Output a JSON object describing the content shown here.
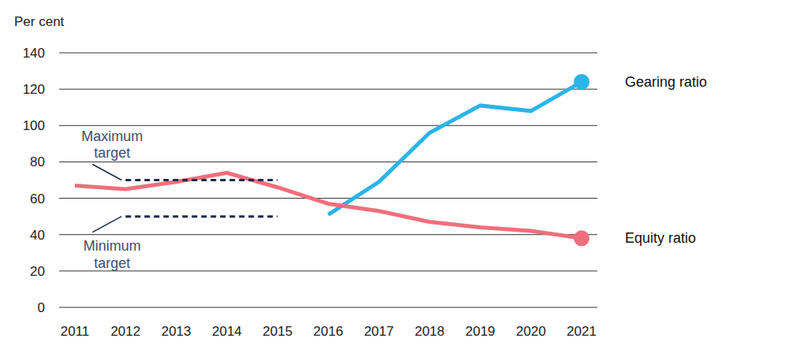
{
  "chart_data": {
    "type": "line",
    "y_label": "Per cent",
    "categories": [
      "2011",
      "2012",
      "2013",
      "2014",
      "2015",
      "2016",
      "2017",
      "2018",
      "2019",
      "2020",
      "2021"
    ],
    "series": [
      {
        "name": "Gearing ratio",
        "color": "#2bb4e8",
        "marker": "end",
        "line_style": "solid",
        "values": [
          null,
          null,
          null,
          null,
          null,
          51,
          69,
          96,
          111,
          108,
          124
        ]
      },
      {
        "name": "Equity ratio",
        "color": "#ef6f7c",
        "marker": "end",
        "line_style": "solid",
        "values": [
          67,
          65,
          69,
          74,
          66,
          57,
          53,
          47,
          44,
          42,
          38
        ]
      },
      {
        "name": "Maximum target",
        "color": "#1c2b4a",
        "line_style": "dashed",
        "values": [
          null,
          70,
          70,
          70,
          70,
          null,
          null,
          null,
          null,
          null,
          null
        ]
      },
      {
        "name": "Minimum target",
        "color": "#1c2b4a",
        "line_style": "dashed",
        "values": [
          null,
          50,
          50,
          50,
          50,
          null,
          null,
          null,
          null,
          null,
          null
        ]
      }
    ],
    "ylim": [
      0,
      140
    ],
    "yticks": [
      0,
      20,
      40,
      60,
      80,
      100,
      120,
      140
    ],
    "grid": true
  }
}
